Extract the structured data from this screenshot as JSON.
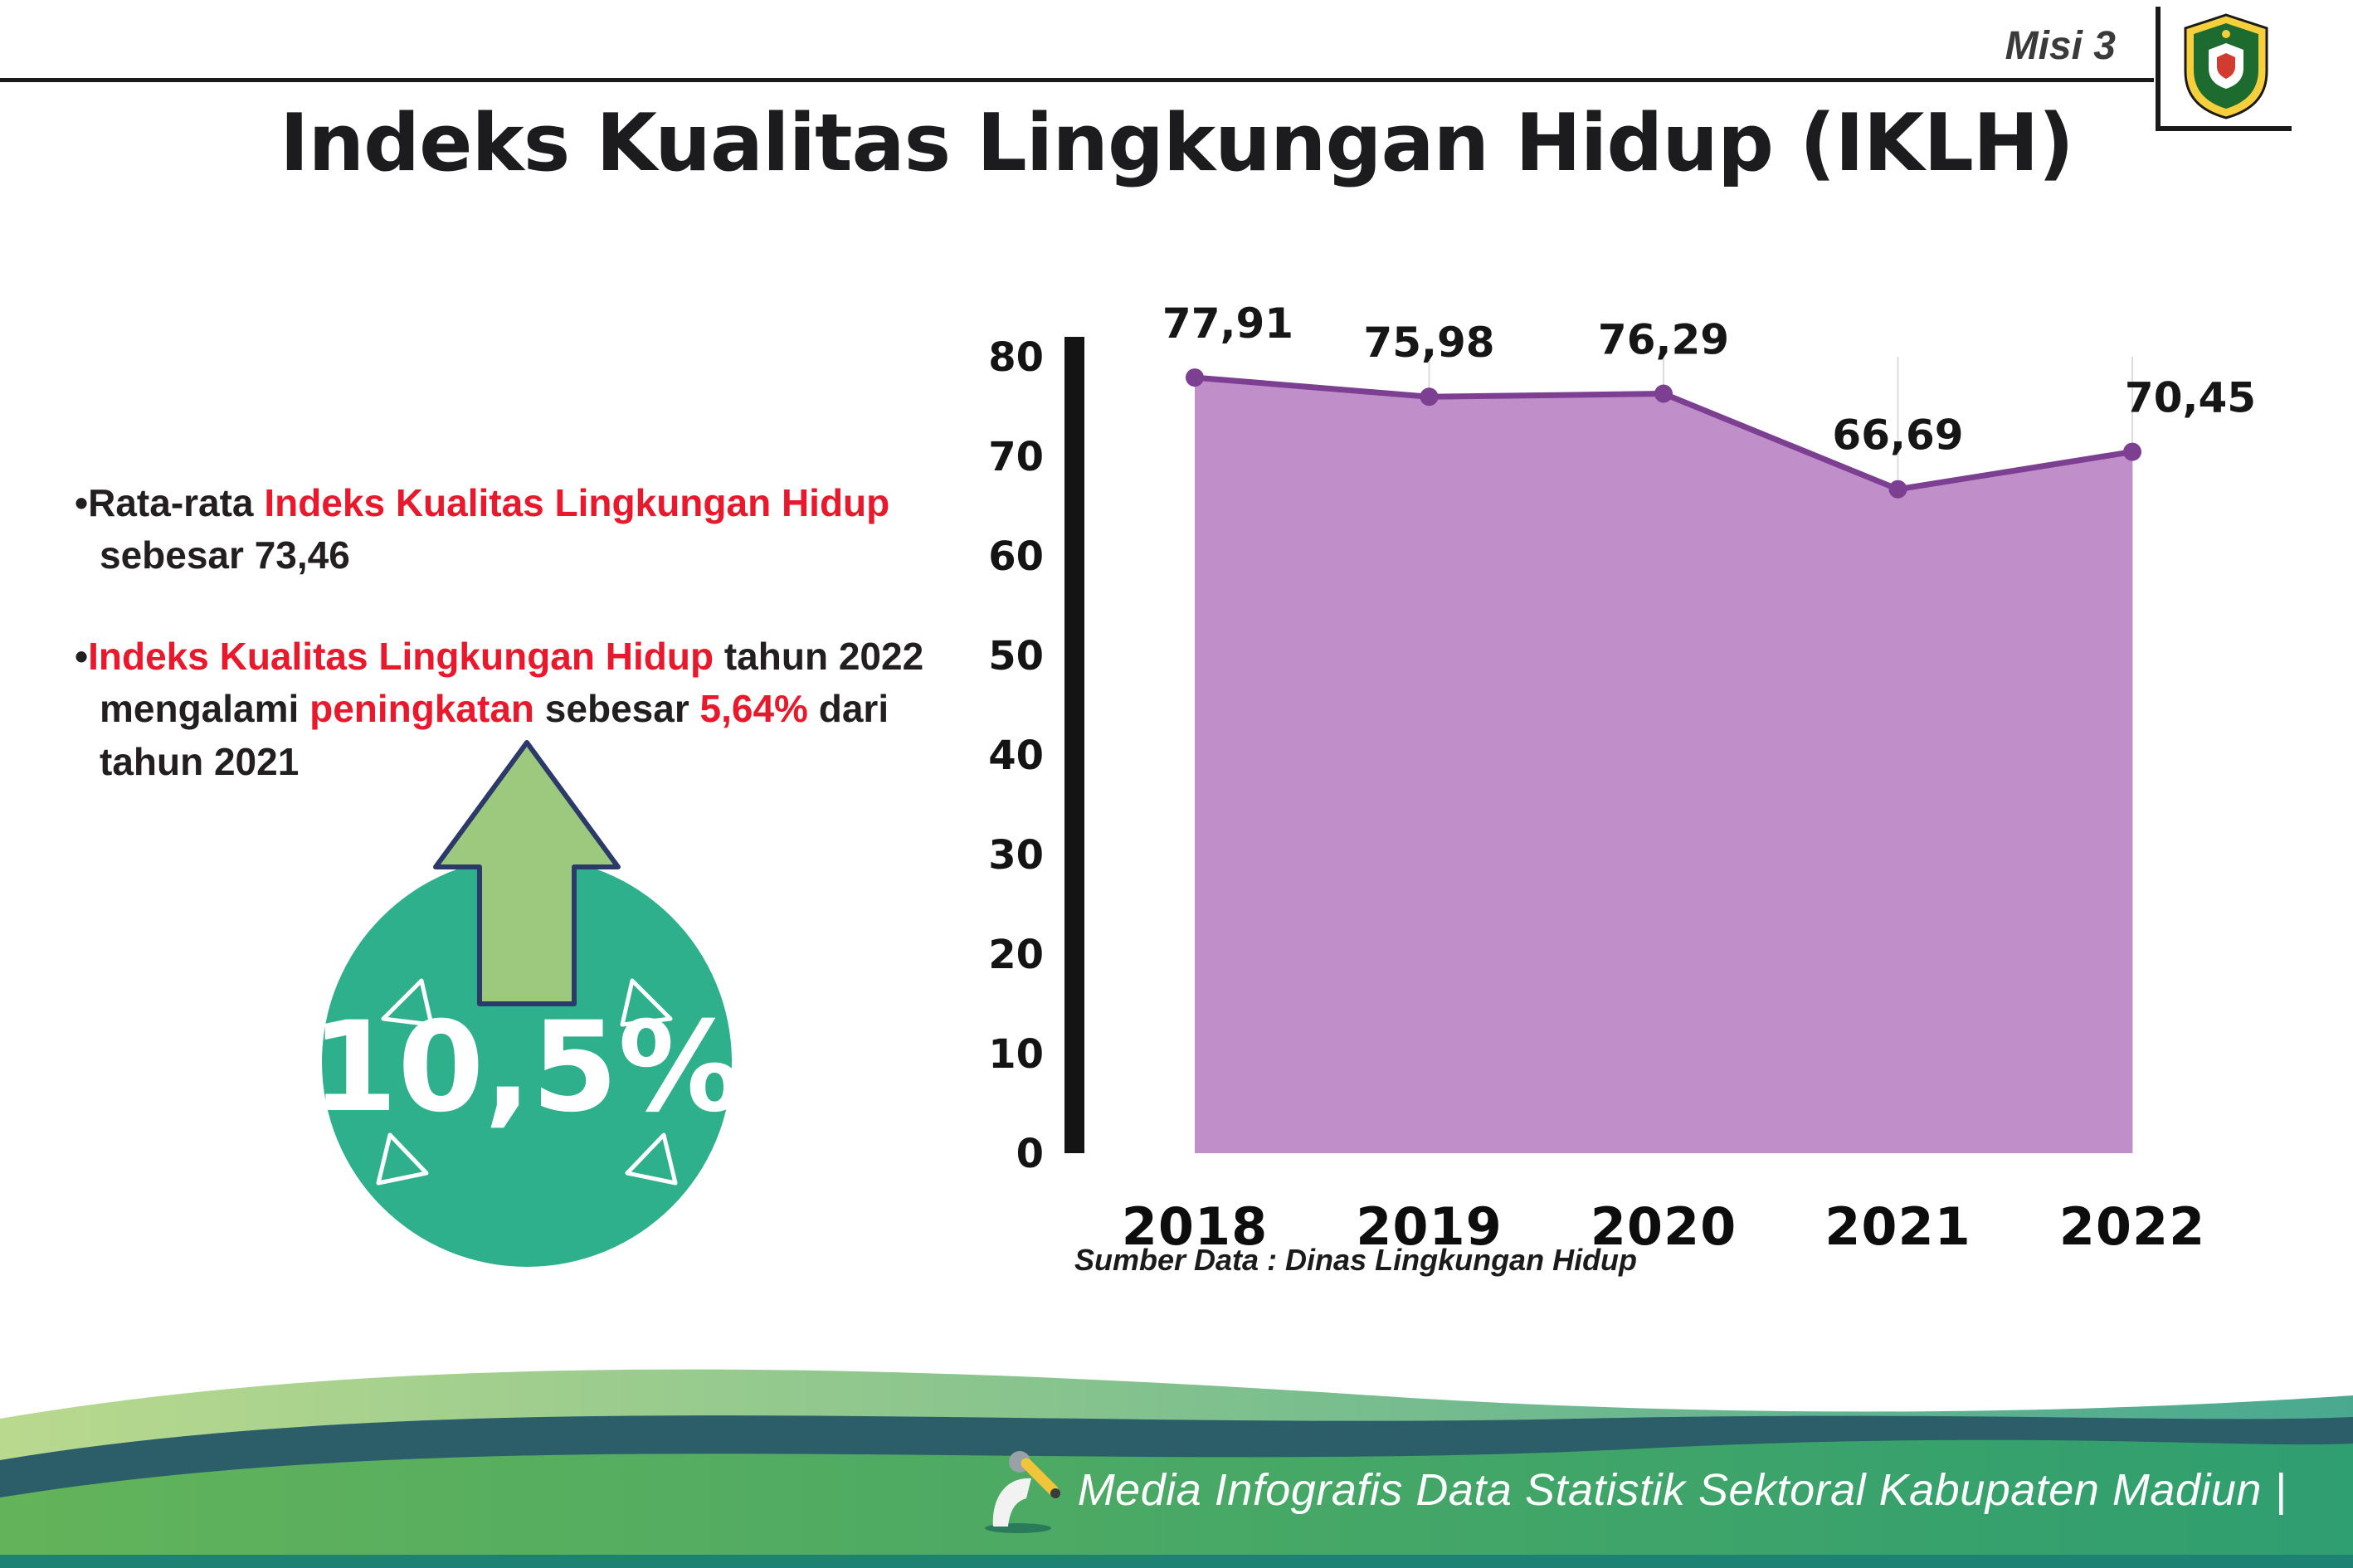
{
  "page": {
    "misi_label": "Misi 3",
    "title": "Indeks Kualitas Lingkungan Hidup (IKLH)"
  },
  "bullets": [
    {
      "segments": [
        {
          "text": "Rata-rata ",
          "red": false
        },
        {
          "text": "Indeks Kualitas Lingkungan Hidup",
          "red": true
        },
        {
          "text": " sebesar 73,46",
          "red": false
        }
      ]
    },
    {
      "segments": [
        {
          "text": "Indeks Kualitas Lingkungan Hidup",
          "red": true
        },
        {
          "text": " tahun 2022 mengalami ",
          "red": false
        },
        {
          "text": "peningkatan",
          "red": true
        },
        {
          "text": " sebesar ",
          "red": false
        },
        {
          "text": "5,64%",
          "red": true
        },
        {
          "text": " dari tahun 2021",
          "red": false
        }
      ]
    }
  ],
  "badge": {
    "value": "10,5%"
  },
  "chart_data": {
    "type": "area",
    "title": "Indeks Kualitas Lingkungan Hidup (IKLH)",
    "categories": [
      "2018",
      "2019",
      "2020",
      "2021",
      "2022"
    ],
    "values": [
      77.91,
      75.98,
      76.29,
      66.69,
      70.45
    ],
    "point_labels": [
      "77,91",
      "75,98",
      "76,29",
      "66,69",
      "70,45"
    ],
    "ylim": [
      0,
      80
    ],
    "yticks": [
      0,
      10,
      20,
      30,
      40,
      50,
      60,
      70,
      80
    ],
    "grid": "vertical-light",
    "legend": "none",
    "area_color": "#c08fc9",
    "line_color": "#7c3f92",
    "source": "Sumber Data : Dinas Lingkungan Hidup"
  },
  "footer": {
    "text": "Media Infografis Data Statistik Sektoral Kabupaten Madiun |"
  },
  "colors": {
    "red": "#e8192c",
    "dark": "#231f20",
    "badge_green": "#2fb08c",
    "arrow_green": "#9cc97e",
    "footer_green": "#3f9d6b",
    "footer_dark_teal": "#2b5e68"
  }
}
